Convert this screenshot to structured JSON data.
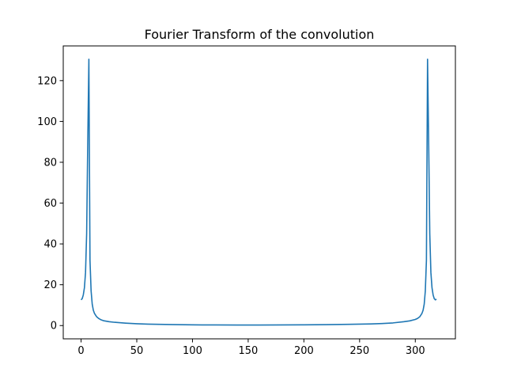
{
  "chart_data": {
    "type": "line",
    "title": "Fourier Transform of the convolution",
    "xlabel": "",
    "ylabel": "",
    "xlim": [
      -16,
      336
    ],
    "ylim": [
      -6.5,
      137
    ],
    "xticks": [
      0,
      50,
      100,
      150,
      200,
      250,
      300
    ],
    "yticks": [
      0,
      20,
      40,
      60,
      80,
      100,
      120
    ],
    "grid": false,
    "legend": "none",
    "series": [
      {
        "color": "#1f77b4",
        "x": [
          0,
          1,
          2,
          3,
          4,
          5,
          6,
          7,
          8,
          9,
          10,
          11,
          12,
          14,
          16,
          18,
          20,
          25,
          30,
          40,
          50,
          60,
          80,
          100,
          120,
          140,
          160,
          180,
          200,
          220,
          240,
          260,
          270,
          280,
          290,
          295,
          300,
          302,
          304,
          306,
          307,
          308,
          309,
          310,
          311,
          312,
          313,
          314,
          315,
          316,
          317,
          318,
          319
        ],
        "values": [
          12.6,
          13.2,
          15.0,
          18.5,
          26.0,
          45.0,
          90.0,
          130.5,
          32.0,
          17.0,
          10.5,
          7.5,
          6.0,
          4.3,
          3.4,
          2.8,
          2.4,
          1.9,
          1.6,
          1.2,
          0.9,
          0.7,
          0.5,
          0.35,
          0.3,
          0.25,
          0.25,
          0.3,
          0.35,
          0.45,
          0.6,
          0.8,
          1.0,
          1.3,
          1.9,
          2.3,
          3.0,
          3.5,
          4.3,
          6.0,
          7.5,
          10.5,
          17.0,
          32.0,
          130.5,
          90.0,
          45.0,
          26.0,
          18.5,
          15.0,
          13.2,
          12.6,
          12.9
        ]
      }
    ]
  }
}
